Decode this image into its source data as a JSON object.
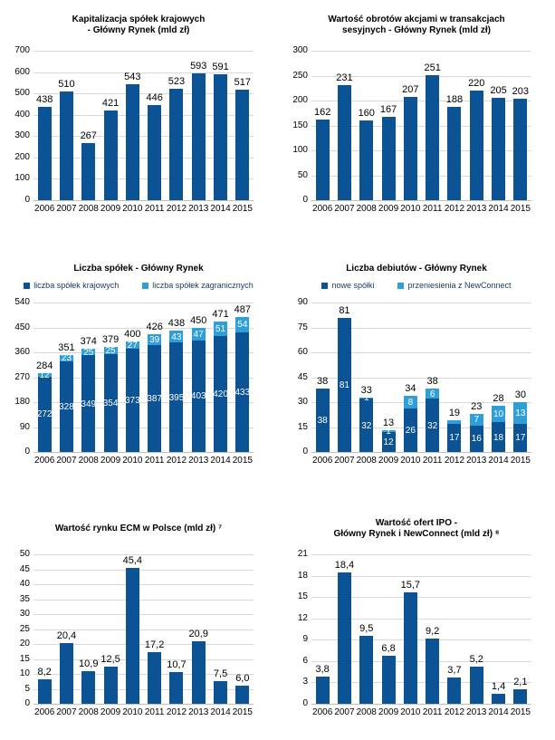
{
  "colors": {
    "bar_dark": "#0B5394",
    "bar_light": "#2E9FD9",
    "gridline": "#D9D9D9",
    "axis_line": "#BFBFBF",
    "label_text": "#000000",
    "segment_label_text": "#FFFFFF",
    "legend_text": "#17375E",
    "background": "#FFFFFF"
  },
  "chart_data": [
    {
      "type": "bar",
      "title": "Kapitalizacja spółek krajowych\n- Główny Rynek (mld zł)",
      "categories": [
        "2006",
        "2007",
        "2008",
        "2009",
        "2010",
        "2011",
        "2012",
        "2013",
        "2014",
        "2015"
      ],
      "series": [
        {
          "name": "kapitalizacja",
          "color": "dark",
          "values": [
            438,
            510,
            267,
            421,
            543,
            446,
            523,
            593,
            591,
            517
          ],
          "labels": [
            "438",
            "510",
            "267",
            "421",
            "543",
            "446",
            "523",
            "593",
            "591",
            "517"
          ]
        }
      ],
      "ylim": [
        0,
        700
      ],
      "ytick_step": 100,
      "grid": true,
      "legend": null
    },
    {
      "type": "bar",
      "title": "Wartość obrotów akcjami w transakcjach\nsesyjnych - Główny Rynek (mld zł)",
      "categories": [
        "2006",
        "2007",
        "2008",
        "2009",
        "2010",
        "2011",
        "2012",
        "2013",
        "2014",
        "2015"
      ],
      "series": [
        {
          "name": "wartość obrotów",
          "color": "dark",
          "values": [
            162,
            231,
            160,
            167,
            207,
            251,
            188,
            220,
            205,
            203
          ],
          "labels": [
            "162",
            "231",
            "160",
            "167",
            "207",
            "251",
            "188",
            "220",
            "205",
            "203"
          ]
        }
      ],
      "ylim": [
        0,
        300
      ],
      "ytick_step": 50,
      "grid": true,
      "legend": null
    },
    {
      "type": "stacked-bar",
      "title": "Liczba spółek - Główny Rynek",
      "categories": [
        "2006",
        "2007",
        "2008",
        "2009",
        "2010",
        "2011",
        "2012",
        "2013",
        "2014",
        "2015"
      ],
      "legend": [
        {
          "label": "liczba spółek krajowych",
          "color": "dark"
        },
        {
          "label": "liczba spółek zagranicznych",
          "color": "light"
        }
      ],
      "series": [
        {
          "name": "liczba spółek krajowych",
          "color": "dark",
          "values": [
            272,
            328,
            349,
            354,
            373,
            387,
            395,
            403,
            420,
            433
          ],
          "labels": [
            "272",
            "328",
            "349",
            "354",
            "373",
            "387",
            "395",
            "403",
            "420",
            "433"
          ]
        },
        {
          "name": "liczba spółek zagranicznych",
          "color": "light",
          "values": [
            12,
            23,
            25,
            25,
            27,
            39,
            43,
            47,
            51,
            54
          ],
          "labels": [
            "12",
            "23",
            "25",
            "25",
            "27",
            "39",
            "43",
            "47",
            "51",
            "54"
          ]
        }
      ],
      "totals": [
        284,
        351,
        374,
        379,
        400,
        426,
        438,
        450,
        471,
        487
      ],
      "total_labels": [
        "284",
        "351",
        "374",
        "379",
        "400",
        "426",
        "438",
        "450",
        "471",
        "487"
      ],
      "ylim": [
        0,
        540
      ],
      "ytick_step": 90,
      "grid": true
    },
    {
      "type": "stacked-bar",
      "title": "Liczba debiutów - Główny Rynek",
      "categories": [
        "2006",
        "2007",
        "2008",
        "2009",
        "2010",
        "2011",
        "2012",
        "2013",
        "2014",
        "2015"
      ],
      "legend": [
        {
          "label": "nowe spółki",
          "color": "dark"
        },
        {
          "label": "przeniesienia z NewConnect",
          "color": "light"
        }
      ],
      "series": [
        {
          "name": "nowe spółki",
          "color": "dark",
          "values": [
            38,
            81,
            32,
            12,
            26,
            32,
            17,
            16,
            18,
            17
          ],
          "labels": [
            "38",
            "81",
            "32",
            "12",
            "26",
            "32",
            "17",
            "16",
            "18",
            "17"
          ]
        },
        {
          "name": "przeniesienia z NewConnect",
          "color": "light",
          "values": [
            0,
            0,
            1,
            1,
            8,
            6,
            2,
            7,
            10,
            13
          ],
          "labels": [
            "",
            "",
            "1",
            "1",
            "8",
            "6",
            "",
            "7",
            "10",
            "13"
          ]
        }
      ],
      "totals": [
        38,
        81,
        33,
        13,
        34,
        38,
        19,
        23,
        28,
        30
      ],
      "total_labels": [
        "38",
        "81",
        "33",
        "13",
        "34",
        "38",
        "19",
        "23",
        "28",
        "30"
      ],
      "ylim": [
        0,
        90
      ],
      "ytick_step": 15,
      "grid": true
    },
    {
      "type": "bar",
      "title": "Wartość rynku ECM w Polsce (mld zł) ⁷",
      "categories": [
        "2006",
        "2007",
        "2008",
        "2009",
        "2010",
        "2011",
        "2012",
        "2013",
        "2014",
        "2015"
      ],
      "series": [
        {
          "name": "wartość rynku ECM",
          "color": "dark",
          "values": [
            8.2,
            20.4,
            10.9,
            12.5,
            45.4,
            17.2,
            10.7,
            20.9,
            7.5,
            6.0
          ],
          "labels": [
            "8,2",
            "20,4",
            "10,9",
            "12,5",
            "45,4",
            "17,2",
            "10,7",
            "20,9",
            "7,5",
            "6,0"
          ]
        }
      ],
      "ylim": [
        0,
        50
      ],
      "ytick_step": 5,
      "grid": true,
      "legend": null
    },
    {
      "type": "bar",
      "title": "Wartość ofert IPO -\nGłówny Rynek i NewConnect (mld zł) ⁸",
      "categories": [
        "2006",
        "2007",
        "2008",
        "2009",
        "2010",
        "2011",
        "2012",
        "2013",
        "2014",
        "2015"
      ],
      "series": [
        {
          "name": "wartość ofert IPO",
          "color": "dark",
          "values": [
            3.8,
            18.4,
            9.5,
            6.8,
            15.7,
            9.2,
            3.7,
            5.2,
            1.4,
            2.1
          ],
          "labels": [
            "3,8",
            "18,4",
            "9,5",
            "6,8",
            "15,7",
            "9,2",
            "3,7",
            "5,2",
            "1,4",
            "2,1"
          ]
        }
      ],
      "ylim": [
        0,
        21
      ],
      "ytick_step": 3,
      "grid": true,
      "legend": null
    }
  ]
}
